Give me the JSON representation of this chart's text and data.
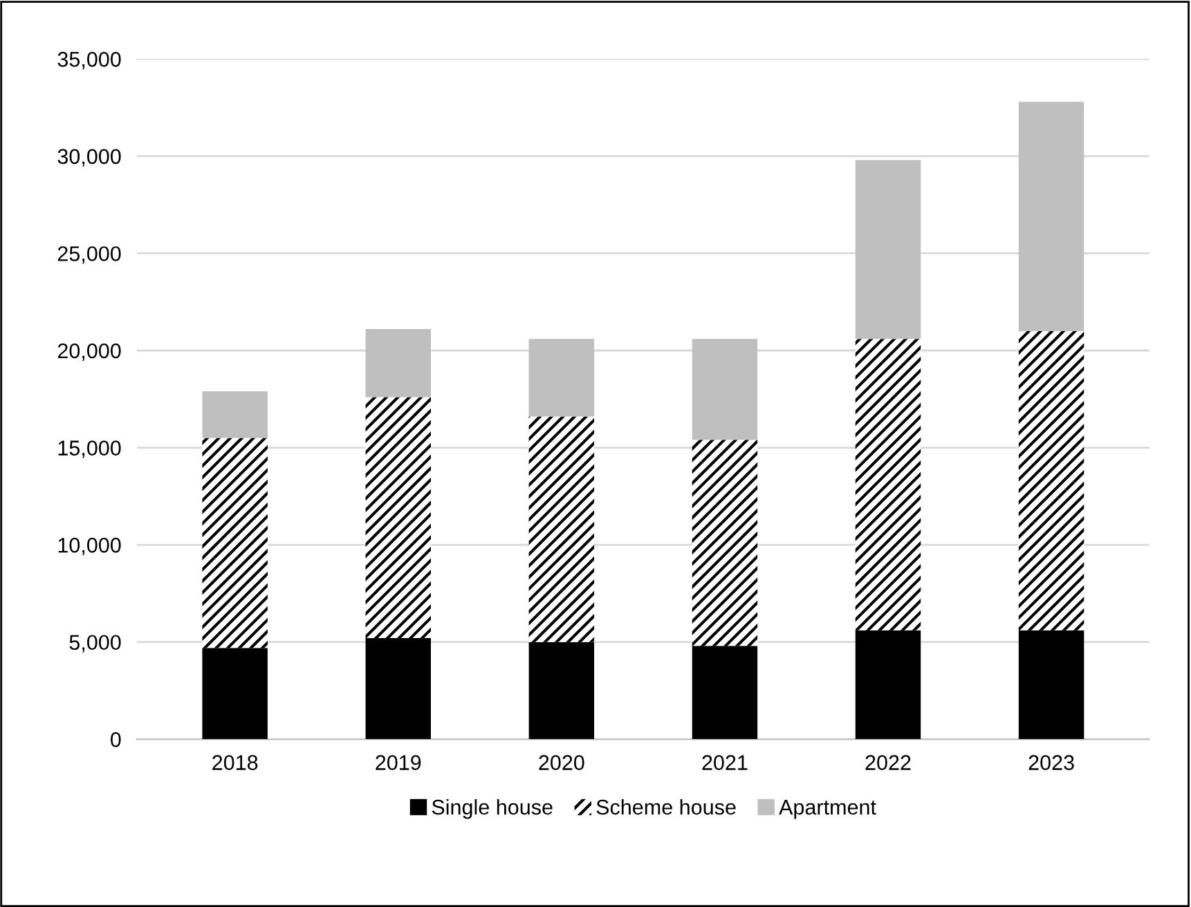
{
  "chart_data": {
    "type": "bar",
    "stacked": true,
    "categories": [
      "2018",
      "2019",
      "2020",
      "2021",
      "2022",
      "2023"
    ],
    "series": [
      {
        "name": "Single house",
        "color": "#000000",
        "values": [
          4700,
          5200,
          5000,
          4800,
          5600,
          5600
        ]
      },
      {
        "name": "Scheme house",
        "color": "#000000",
        "values": [
          10800,
          12400,
          11600,
          10600,
          15000,
          15400
        ]
      },
      {
        "name": "Apartment",
        "color": "#bfbfbf",
        "values": [
          2400,
          3500,
          4000,
          5200,
          9200,
          11800
        ]
      }
    ],
    "ylim": [
      0,
      35000
    ],
    "yticks": [
      {
        "value": 0,
        "label": "0"
      },
      {
        "value": 5000,
        "label": "5,000"
      },
      {
        "value": 10000,
        "label": "10,000"
      },
      {
        "value": 15000,
        "label": "15,000"
      },
      {
        "value": 20000,
        "label": "20,000"
      },
      {
        "value": 25000,
        "label": "25,000"
      },
      {
        "value": 30000,
        "label": "30,000"
      },
      {
        "value": 35000,
        "label": "35,000"
      }
    ],
    "grid": "y",
    "legend": "bottom"
  }
}
